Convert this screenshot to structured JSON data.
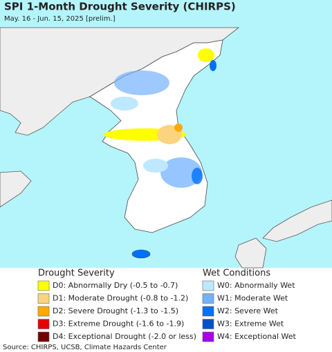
{
  "header": {
    "title": "SPI 1-Month Drought Severity (CHIRPS)",
    "subtitle": "May. 16 - Jun. 15, 2025 [prelim.]"
  },
  "legend": {
    "drought": {
      "title": "Drought Severity",
      "items": [
        {
          "label": "D0: Abnormally Dry (-0.5 to -0.7)",
          "color": "#ffff00"
        },
        {
          "label": "D1: Moderate Drought (-0.8 to -1.2)",
          "color": "#fcd37f"
        },
        {
          "label": "D2: Severe Drought (-1.3 to -1.5)",
          "color": "#ffaa00"
        },
        {
          "label": "D3: Extreme Drought (-1.6 to -1.9)",
          "color": "#e60000"
        },
        {
          "label": "D4: Exceptional Drought (-2.0 or less)",
          "color": "#730000"
        }
      ]
    },
    "wet": {
      "title": "Wet Conditions",
      "items": [
        {
          "label": "W0: Abnormally Wet",
          "color": "#bee8ff"
        },
        {
          "label": "W1: Moderate Wet",
          "color": "#73b2ff"
        },
        {
          "label": "W2: Severe Wet",
          "color": "#0070ff"
        },
        {
          "label": "W3: Extreme Wet",
          "color": "#0050c8"
        },
        {
          "label": "W4: Exceptional Wet",
          "color": "#a800e6"
        }
      ]
    }
  },
  "footer": {
    "source": "Source: CHIRPS, UCSB, Climate Hazards Center"
  }
}
